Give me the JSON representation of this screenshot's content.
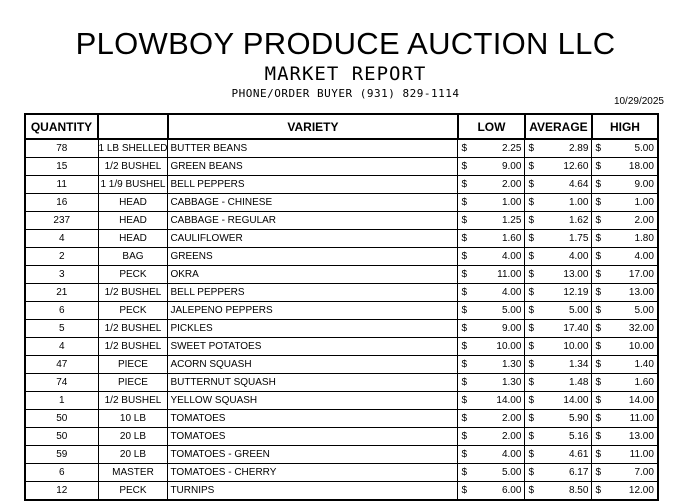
{
  "header": {
    "title": "PLOWBOY PRODUCE AUCTION LLC",
    "subtitle": "MARKET REPORT",
    "phone_line": "PHONE/ORDER BUYER (931) 829-1114",
    "date": "10/29/2025"
  },
  "table": {
    "columns": {
      "quantity": "QUANTITY",
      "variety": "VARIETY",
      "low": "LOW",
      "average": "AVERAGE",
      "high": "HIGH"
    },
    "currency_symbol": "$",
    "rows": [
      {
        "qty": "78",
        "unit": "1 LB SHELLED",
        "variety": "BUTTER BEANS",
        "low": "2.25",
        "avg": "2.89",
        "high": "5.00"
      },
      {
        "qty": "15",
        "unit": "1/2 BUSHEL",
        "variety": "GREEN BEANS",
        "low": "9.00",
        "avg": "12.60",
        "high": "18.00"
      },
      {
        "qty": "11",
        "unit": "1 1/9 BUSHEL",
        "variety": "BELL PEPPERS",
        "low": "2.00",
        "avg": "4.64",
        "high": "9.00"
      },
      {
        "qty": "16",
        "unit": "HEAD",
        "variety": "CABBAGE - CHINESE",
        "low": "1.00",
        "avg": "1.00",
        "high": "1.00"
      },
      {
        "qty": "237",
        "unit": "HEAD",
        "variety": "CABBAGE - REGULAR",
        "low": "1.25",
        "avg": "1.62",
        "high": "2.00"
      },
      {
        "qty": "4",
        "unit": "HEAD",
        "variety": "CAULIFLOWER",
        "low": "1.60",
        "avg": "1.75",
        "high": "1.80"
      },
      {
        "qty": "2",
        "unit": "BAG",
        "variety": "GREENS",
        "low": "4.00",
        "avg": "4.00",
        "high": "4.00"
      },
      {
        "qty": "3",
        "unit": "PECK",
        "variety": "OKRA",
        "low": "11.00",
        "avg": "13.00",
        "high": "17.00"
      },
      {
        "qty": "21",
        "unit": "1/2 BUSHEL",
        "variety": "BELL PEPPERS",
        "low": "4.00",
        "avg": "12.19",
        "high": "13.00"
      },
      {
        "qty": "6",
        "unit": "PECK",
        "variety": "JALEPENO PEPPERS",
        "low": "5.00",
        "avg": "5.00",
        "high": "5.00"
      },
      {
        "qty": "5",
        "unit": "1/2 BUSHEL",
        "variety": "PICKLES",
        "low": "9.00",
        "avg": "17.40",
        "high": "32.00"
      },
      {
        "qty": "4",
        "unit": "1/2 BUSHEL",
        "variety": "SWEET POTATOES",
        "low": "10.00",
        "avg": "10.00",
        "high": "10.00"
      },
      {
        "qty": "47",
        "unit": "PIECE",
        "variety": "ACORN SQUASH",
        "low": "1.30",
        "avg": "1.34",
        "high": "1.40"
      },
      {
        "qty": "74",
        "unit": "PIECE",
        "variety": "BUTTERNUT SQUASH",
        "low": "1.30",
        "avg": "1.48",
        "high": "1.60"
      },
      {
        "qty": "1",
        "unit": "1/2 BUSHEL",
        "variety": "YELLOW SQUASH",
        "low": "14.00",
        "avg": "14.00",
        "high": "14.00"
      },
      {
        "qty": "50",
        "unit": "10 LB",
        "variety": "TOMATOES",
        "low": "2.00",
        "avg": "5.90",
        "high": "11.00"
      },
      {
        "qty": "50",
        "unit": "20 LB",
        "variety": "TOMATOES",
        "low": "2.00",
        "avg": "5.16",
        "high": "13.00"
      },
      {
        "qty": "59",
        "unit": "20 LB",
        "variety": "TOMATOES - GREEN",
        "low": "4.00",
        "avg": "4.61",
        "high": "11.00"
      },
      {
        "qty": "6",
        "unit": "MASTER",
        "variety": "TOMATOES - CHERRY",
        "low": "5.00",
        "avg": "6.17",
        "high": "7.00"
      },
      {
        "qty": "12",
        "unit": "PECK",
        "variety": "TURNIPS",
        "low": "6.00",
        "avg": "8.50",
        "high": "12.00"
      }
    ]
  }
}
